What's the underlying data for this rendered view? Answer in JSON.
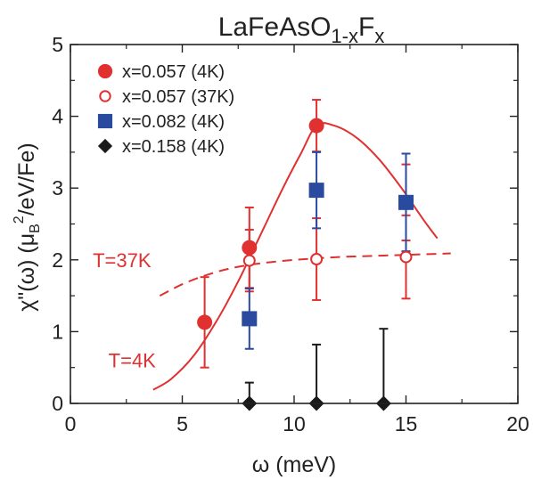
{
  "chart_data": {
    "type": "scatter",
    "title": {
      "main": "LaFeAsO",
      "sub1": "1-x",
      "mid": "F",
      "sub2": "x"
    },
    "xlabel": "ω (meV)",
    "ylabel": {
      "pre": "χ\"(ω)  (μ",
      "sub": "B",
      "sup": "2",
      "post": "/eV/Fe)"
    },
    "xlim": [
      0,
      20
    ],
    "ylim": [
      0,
      5
    ],
    "x_ticks": [
      0,
      5,
      10,
      15,
      20
    ],
    "y_ticks": [
      0,
      1,
      2,
      3,
      4,
      5
    ],
    "grid": false,
    "legend_position": "top-left",
    "series": [
      {
        "name": "x=0.057 (4K)",
        "marker": "filled-circle",
        "color": "#e03030",
        "points": [
          {
            "x": 6,
            "y": 1.13,
            "err": 0.63
          },
          {
            "x": 8,
            "y": 2.17,
            "err": 0.56
          },
          {
            "x": 11,
            "y": 3.87,
            "err": 0.36
          },
          {
            "x": 15,
            "y": 2.8,
            "err": 0.53
          }
        ]
      },
      {
        "name": "x=0.057 (37K)",
        "marker": "open-circle",
        "color": "#e03030",
        "points": [
          {
            "x": 8,
            "y": 1.99,
            "err": 0.43
          },
          {
            "x": 11,
            "y": 2.01,
            "err": 0.57
          },
          {
            "x": 15,
            "y": 2.04,
            "err": 0.58
          }
        ]
      },
      {
        "name": "x=0.082 (4K)",
        "marker": "filled-square",
        "color": "#2a4aa0",
        "points": [
          {
            "x": 8,
            "y": 1.18,
            "err": 0.42
          },
          {
            "x": 11,
            "y": 2.97,
            "err": 0.53
          },
          {
            "x": 15,
            "y": 2.8,
            "err": 0.68
          }
        ]
      },
      {
        "name": "x=0.158 (4K)",
        "marker": "filled-diamond",
        "color": "#1a1a1a",
        "points": [
          {
            "x": 8,
            "y": 0.0,
            "err": 0.29
          },
          {
            "x": 11,
            "y": 0.0,
            "err": 0.82
          },
          {
            "x": 14,
            "y": 0.0,
            "err": 1.04
          }
        ]
      }
    ],
    "fit_curves": [
      {
        "label": "T=4K",
        "style": "solid",
        "color": "#e03030",
        "x": [
          3.7,
          4.5,
          5.5,
          6.5,
          7.5,
          8.5,
          9.5,
          10.3,
          11.0,
          11.8,
          12.8,
          13.8,
          14.8,
          15.8,
          16.4
        ],
        "y": [
          0.19,
          0.34,
          0.66,
          1.13,
          1.7,
          2.35,
          3.0,
          3.48,
          3.87,
          3.87,
          3.7,
          3.4,
          3.0,
          2.55,
          2.3
        ]
      },
      {
        "label": "T=37K",
        "style": "dashed",
        "color": "#e03030",
        "x": [
          4.0,
          5.0,
          6.0,
          7.0,
          8.0,
          9.0,
          10.0,
          11.0,
          12.0,
          13.0,
          14.0,
          15.0,
          16.0,
          17.0
        ],
        "y": [
          1.5,
          1.66,
          1.78,
          1.87,
          1.93,
          1.97,
          2.0,
          2.02,
          2.04,
          2.05,
          2.06,
          2.07,
          2.08,
          2.09
        ]
      }
    ],
    "curve_labels": [
      {
        "text": "T=37K",
        "x": 1.0,
        "y": 1.9
      },
      {
        "text": "T=4K",
        "x": 1.7,
        "y": 0.5
      }
    ]
  }
}
